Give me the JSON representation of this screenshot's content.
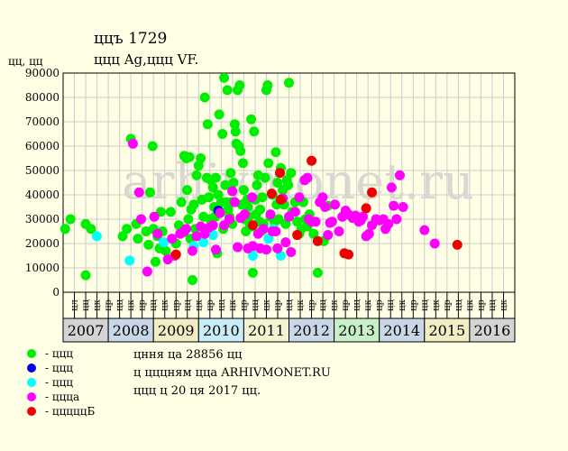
{
  "header": {
    "title": "ццъ 1729",
    "subtitle": "ццц Ag,ццц VF."
  },
  "notes": [
    "цння ца 28856 цц",
    "ц цццням цца ARHIVMONET.RU",
    "ццц ц 20 ця 2017 цц."
  ],
  "watermark": "arhivmonet.ru",
  "colors": {
    "plot_bg": "#ffffe5",
    "grid": "#cccccc",
    "axis": "#000000",
    "watermark": "#d8d8d0"
  },
  "chart_data": {
    "type": "scatter",
    "ylabel": "цц, цц",
    "ylim": [
      0,
      90000
    ],
    "yticks": [
      0,
      10000,
      20000,
      30000,
      40000,
      50000,
      60000,
      70000,
      80000,
      90000
    ],
    "xlim": [
      2006.0,
      2017.0
    ],
    "years": [
      {
        "label": "2007",
        "color": "#d4d4d4"
      },
      {
        "label": "2008",
        "color": "#c8d8e8"
      },
      {
        "label": "2009",
        "color": "#f0ecc4"
      },
      {
        "label": "2010",
        "color": "#c8ecf8"
      },
      {
        "label": "2011",
        "color": "#f4f4d0"
      },
      {
        "label": "2012",
        "color": "#c8d8e8"
      },
      {
        "label": "2013",
        "color": "#c8f0c8"
      },
      {
        "label": "2014",
        "color": "#c8d8e8"
      },
      {
        "label": "2015",
        "color": "#f0ecc4"
      },
      {
        "label": "2016",
        "color": "#d4d4d4"
      }
    ],
    "quarter_labels": [
      "цл",
      "цц",
      "цк",
      "цр"
    ],
    "tick_labels": [
      "цл",
      "цц",
      "цк",
      "цр",
      "цц",
      "цк",
      "цр",
      "цц",
      "цк",
      "цр",
      "цц",
      "цк",
      "цр",
      "цц",
      "цк",
      "цр",
      "цц",
      "цк",
      "цр",
      "цц",
      "цк",
      "цр",
      "цц",
      "цк",
      "цр",
      "цц",
      "цк",
      "цр",
      "цц",
      "цк",
      "цр",
      "цц",
      "цк",
      "цр",
      "цц",
      "цк",
      "цр",
      "цц",
      "цк"
    ],
    "legend": [
      {
        "label": "- ццц",
        "color": "#00ee00"
      },
      {
        "label": "- ццц",
        "color": "#0000ee"
      },
      {
        "label": "- ццц",
        "color": "#00ffff"
      },
      {
        "label": "- ццца",
        "color": "#ff00ff"
      },
      {
        "label": "- цццццБ",
        "color": "#ee0000"
      }
    ],
    "series": [
      {
        "color": "#00ee00",
        "points": [
          [
            2006.05,
            26000
          ],
          [
            2006.18,
            30000
          ],
          [
            2006.55,
            7000
          ],
          [
            2006.55,
            28000
          ],
          [
            2006.68,
            26000
          ],
          [
            2007.45,
            23000
          ],
          [
            2007.55,
            26000
          ],
          [
            2007.65,
            63000
          ],
          [
            2007.78,
            28000
          ],
          [
            2007.82,
            22000
          ],
          [
            2008.02,
            25000
          ],
          [
            2008.08,
            19500
          ],
          [
            2008.12,
            41000
          ],
          [
            2008.18,
            60000
          ],
          [
            2008.2,
            26000
          ],
          [
            2008.25,
            12500
          ],
          [
            2008.3,
            23000
          ],
          [
            2008.35,
            18000
          ],
          [
            2008.38,
            33000
          ],
          [
            2008.42,
            25000
          ],
          [
            2008.5,
            17000
          ],
          [
            2008.62,
            33000
          ],
          [
            2008.75,
            20000
          ],
          [
            2008.82,
            27500
          ],
          [
            2008.88,
            37000
          ],
          [
            2008.92,
            24500
          ],
          [
            2008.95,
            56000
          ],
          [
            2009.0,
            55000
          ],
          [
            2009.02,
            42000
          ],
          [
            2009.05,
            30000
          ],
          [
            2009.08,
            55500
          ],
          [
            2009.1,
            22000
          ],
          [
            2009.12,
            34000
          ],
          [
            2009.15,
            5000
          ],
          [
            2009.18,
            36000
          ],
          [
            2009.22,
            26000
          ],
          [
            2009.25,
            48000
          ],
          [
            2009.3,
            52000
          ],
          [
            2009.35,
            55000
          ],
          [
            2009.38,
            38000
          ],
          [
            2009.42,
            31000
          ],
          [
            2009.45,
            80000
          ],
          [
            2009.5,
            47000
          ],
          [
            2009.52,
            69000
          ],
          [
            2009.55,
            39000
          ],
          [
            2009.58,
            30000
          ],
          [
            2009.6,
            46000
          ],
          [
            2009.62,
            27000
          ],
          [
            2009.65,
            43000
          ],
          [
            2009.68,
            35000
          ],
          [
            2009.7,
            31000
          ],
          [
            2009.72,
            47000
          ],
          [
            2009.75,
            16000
          ],
          [
            2009.78,
            40000
          ],
          [
            2009.8,
            73000
          ],
          [
            2009.82,
            33000
          ],
          [
            2009.85,
            37000
          ],
          [
            2009.88,
            65000
          ],
          [
            2009.9,
            26000
          ],
          [
            2009.92,
            88000
          ],
          [
            2009.95,
            44000
          ],
          [
            2009.98,
            37000
          ],
          [
            2010.0,
            83000
          ],
          [
            2010.02,
            34000
          ],
          [
            2010.05,
            31000
          ],
          [
            2010.08,
            49000
          ],
          [
            2010.1,
            37000
          ],
          [
            2010.12,
            28000
          ],
          [
            2010.15,
            45000
          ],
          [
            2010.18,
            69000
          ],
          [
            2010.2,
            66000
          ],
          [
            2010.22,
            61000
          ],
          [
            2010.25,
            83000
          ],
          [
            2010.28,
            60000
          ],
          [
            2010.3,
            85000
          ],
          [
            2010.32,
            58000
          ],
          [
            2010.35,
            36000
          ],
          [
            2010.38,
            53000
          ],
          [
            2010.4,
            42000
          ],
          [
            2010.42,
            30000
          ],
          [
            2010.45,
            25000
          ],
          [
            2010.48,
            38000
          ],
          [
            2010.5,
            35000
          ],
          [
            2010.52,
            31000
          ],
          [
            2010.55,
            28000
          ],
          [
            2010.58,
            71000
          ],
          [
            2010.6,
            27000
          ],
          [
            2010.62,
            8000
          ],
          [
            2010.65,
            66000
          ],
          [
            2010.68,
            38000
          ],
          [
            2010.7,
            32000
          ],
          [
            2010.72,
            44000
          ],
          [
            2010.75,
            48000
          ],
          [
            2010.78,
            29000
          ],
          [
            2010.8,
            34000
          ],
          [
            2010.82,
            25000
          ],
          [
            2010.85,
            39000
          ],
          [
            2010.88,
            28000
          ],
          [
            2010.92,
            47000
          ],
          [
            2010.95,
            83000
          ],
          [
            2010.98,
            85000
          ],
          [
            2011.0,
            53000
          ],
          [
            2011.05,
            31000
          ],
          [
            2011.1,
            40000
          ],
          [
            2011.15,
            29000
          ],
          [
            2011.18,
            57500
          ],
          [
            2011.2,
            36000
          ],
          [
            2011.22,
            45000
          ],
          [
            2011.25,
            30000
          ],
          [
            2011.3,
            51000
          ],
          [
            2011.35,
            42000
          ],
          [
            2011.38,
            36000
          ],
          [
            2011.42,
            28000
          ],
          [
            2011.45,
            46000
          ],
          [
            2011.48,
            44000
          ],
          [
            2011.5,
            86000
          ],
          [
            2011.55,
            49000
          ],
          [
            2011.58,
            33000
          ],
          [
            2011.65,
            37000
          ],
          [
            2011.7,
            29000
          ],
          [
            2011.75,
            24000
          ],
          [
            2011.8,
            26000
          ],
          [
            2011.85,
            37000
          ],
          [
            2011.9,
            30000
          ],
          [
            2011.95,
            27000
          ],
          [
            2012.0,
            32000
          ],
          [
            2012.1,
            24000
          ],
          [
            2012.2,
            8000
          ],
          [
            2012.35,
            21000
          ],
          [
            2012.45,
            35500
          ]
        ]
      },
      {
        "color": "#0000ee",
        "points": [
          [
            2009.78,
            33500
          ]
        ]
      },
      {
        "color": "#00ffff",
        "points": [
          [
            2006.82,
            23000
          ],
          [
            2007.62,
            13000
          ],
          [
            2008.45,
            20500
          ],
          [
            2009.18,
            19000
          ],
          [
            2009.42,
            20500
          ],
          [
            2009.65,
            23500
          ],
          [
            2010.62,
            15000
          ],
          [
            2011.0,
            22000
          ],
          [
            2011.12,
            26000
          ],
          [
            2011.3,
            15000
          ]
        ]
      },
      {
        "color": "#ff00ff",
        "points": [
          [
            2007.7,
            61000
          ],
          [
            2007.85,
            41000
          ],
          [
            2007.9,
            30000
          ],
          [
            2008.05,
            8500
          ],
          [
            2008.22,
            31000
          ],
          [
            2008.3,
            24000
          ],
          [
            2008.55,
            13500
          ],
          [
            2008.65,
            22000
          ],
          [
            2008.72,
            15000
          ],
          [
            2008.85,
            24000
          ],
          [
            2008.95,
            25000
          ],
          [
            2009.0,
            26000
          ],
          [
            2009.15,
            17000
          ],
          [
            2009.25,
            23000
          ],
          [
            2009.35,
            27000
          ],
          [
            2009.45,
            24000
          ],
          [
            2009.55,
            26500
          ],
          [
            2009.65,
            27500
          ],
          [
            2009.72,
            17500
          ],
          [
            2009.82,
            32500
          ],
          [
            2009.92,
            27500
          ],
          [
            2010.05,
            30000
          ],
          [
            2010.12,
            41500
          ],
          [
            2010.18,
            37000
          ],
          [
            2010.25,
            18500
          ],
          [
            2010.32,
            30500
          ],
          [
            2010.42,
            32000
          ],
          [
            2010.5,
            18000
          ],
          [
            2010.6,
            39000
          ],
          [
            2010.62,
            19000
          ],
          [
            2010.75,
            24000
          ],
          [
            2010.8,
            18000
          ],
          [
            2010.88,
            26000
          ],
          [
            2010.95,
            17500
          ],
          [
            2011.05,
            32000
          ],
          [
            2011.1,
            25000
          ],
          [
            2011.18,
            25000
          ],
          [
            2011.22,
            18000
          ],
          [
            2011.35,
            38500
          ],
          [
            2011.42,
            20500
          ],
          [
            2011.5,
            31000
          ],
          [
            2011.55,
            16500
          ],
          [
            2011.65,
            33000
          ],
          [
            2011.75,
            39000
          ],
          [
            2011.88,
            46000
          ],
          [
            2011.95,
            47000
          ],
          [
            2011.98,
            30000
          ],
          [
            2012.05,
            29000
          ],
          [
            2012.15,
            29000
          ],
          [
            2012.25,
            37000
          ],
          [
            2012.32,
            39000
          ],
          [
            2012.38,
            35000
          ],
          [
            2012.45,
            23500
          ],
          [
            2012.5,
            28500
          ],
          [
            2012.55,
            29000
          ],
          [
            2012.62,
            36000
          ],
          [
            2012.72,
            25000
          ],
          [
            2012.8,
            31000
          ],
          [
            2012.88,
            33500
          ],
          [
            2012.95,
            32000
          ],
          [
            2013.05,
            30500
          ],
          [
            2013.12,
            31500
          ],
          [
            2013.2,
            29000
          ],
          [
            2013.25,
            29500
          ],
          [
            2013.3,
            31000
          ],
          [
            2013.38,
            23000
          ],
          [
            2013.45,
            24000
          ],
          [
            2013.52,
            27500
          ],
          [
            2013.62,
            30000
          ],
          [
            2013.7,
            29500
          ],
          [
            2013.8,
            30000
          ],
          [
            2013.85,
            26000
          ],
          [
            2013.92,
            28000
          ],
          [
            2014.0,
            43000
          ],
          [
            2014.05,
            35500
          ],
          [
            2014.12,
            30000
          ],
          [
            2014.2,
            48000
          ],
          [
            2014.28,
            35000
          ],
          [
            2014.8,
            25500
          ],
          [
            2015.05,
            20000
          ]
        ]
      },
      {
        "color": "#ee0000",
        "points": [
          [
            2008.75,
            15500
          ],
          [
            2010.62,
            27500
          ],
          [
            2011.08,
            40500
          ],
          [
            2011.28,
            49000
          ],
          [
            2011.3,
            38000
          ],
          [
            2011.7,
            23500
          ],
          [
            2012.05,
            54000
          ],
          [
            2012.2,
            21000
          ],
          [
            2012.85,
            16000
          ],
          [
            2012.95,
            15500
          ],
          [
            2013.38,
            34500
          ],
          [
            2013.52,
            41000
          ],
          [
            2015.6,
            19500
          ]
        ]
      }
    ]
  }
}
